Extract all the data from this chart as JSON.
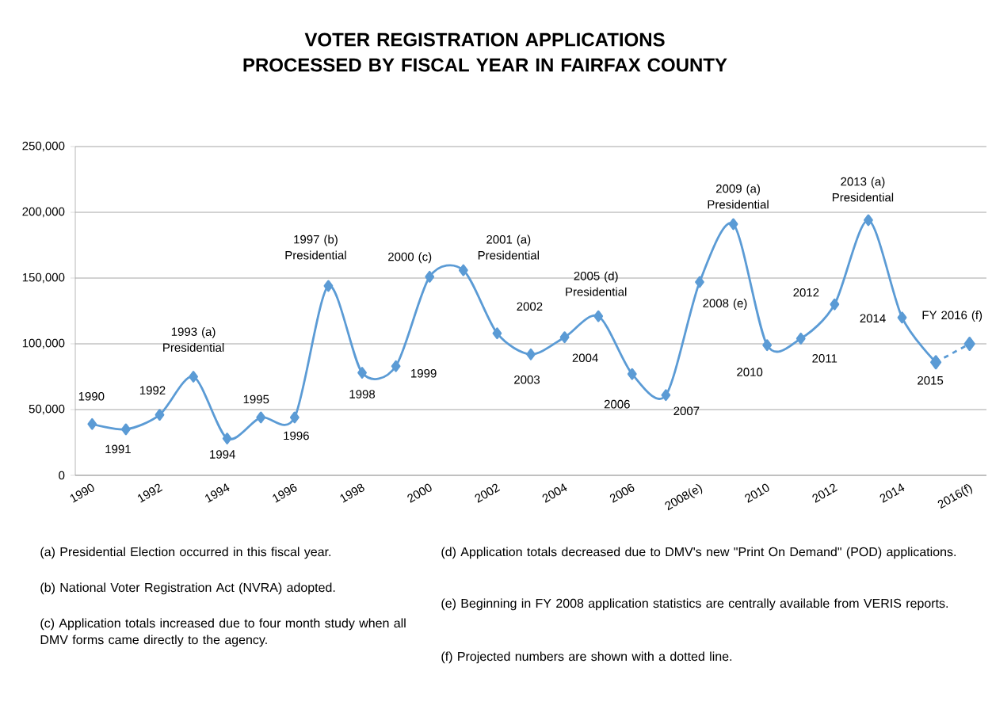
{
  "chart_data": {
    "type": "line",
    "title": "VOTER REGISTRATION APPLICATIONS PROCESSED BY FISCAL YEAR IN FAIRFAX COUNTY",
    "x": [
      1990,
      1991,
      1992,
      1993,
      1994,
      1995,
      1996,
      1997,
      1998,
      1999,
      2000,
      2001,
      2002,
      2003,
      2004,
      2005,
      2006,
      2007,
      2008,
      2009,
      2010,
      2011,
      2012,
      2013,
      2014,
      2015
    ],
    "series": [
      {
        "color": "#5b9bd5",
        "line_style": "solid",
        "values": [
          39000,
          35000,
          46000,
          75000,
          28000,
          44000,
          44000,
          144000,
          78000,
          83000,
          151000,
          156000,
          108000,
          92000,
          105000,
          121000,
          77000,
          61000,
          147000,
          191000,
          99000,
          104000,
          130000,
          194000,
          120000,
          86000
        ]
      },
      {
        "color": "#5b9bd5",
        "line_style": "dashed",
        "x": [
          2015,
          2016
        ],
        "values": [
          86000,
          100000
        ]
      }
    ],
    "xlim": [
      1989.5,
      2016.5
    ],
    "xticks": [
      1990,
      1992,
      1994,
      1996,
      1998,
      2000,
      2002,
      2004,
      2006,
      {
        "value": 2008,
        "label": "2008(e)"
      },
      2010,
      2012,
      2014,
      {
        "value": 2016,
        "label": "2016(f)"
      }
    ],
    "ylim": [
      0,
      250000
    ],
    "yticks": [
      0,
      {
        "value": 50000,
        "label": "50,000"
      },
      {
        "value": 100000,
        "label": "100,000"
      },
      {
        "value": 150000,
        "label": "150,000"
      },
      {
        "value": 200000,
        "label": "200,000"
      },
      {
        "value": 250000,
        "label": "250,000"
      }
    ],
    "grid": "y",
    "marker": "diamond",
    "annotations": [
      {
        "text": "1990",
        "x": 1990,
        "y": 39000
      },
      {
        "text": "1991",
        "x": 1991,
        "y": 35000
      },
      {
        "text": "1992",
        "x": 1992,
        "y": 46000
      },
      {
        "text": "1993 (a) Presidential",
        "x": 1993,
        "y": 75000
      },
      {
        "text": "1994",
        "x": 1994,
        "y": 28000
      },
      {
        "text": "1995",
        "x": 1995,
        "y": 44000
      },
      {
        "text": "1996",
        "x": 1996,
        "y": 44000
      },
      {
        "text": "1997 (b) Presidential",
        "x": 1997,
        "y": 144000
      },
      {
        "text": "1998",
        "x": 1998,
        "y": 78000
      },
      {
        "text": "1999",
        "x": 1999,
        "y": 83000
      },
      {
        "text": "2000 (c)",
        "x": 2000,
        "y": 151000
      },
      {
        "text": "2001 (a) Presidential",
        "x": 2001,
        "y": 156000
      },
      {
        "text": "2002",
        "x": 2002,
        "y": 108000
      },
      {
        "text": "2003",
        "x": 2003,
        "y": 92000
      },
      {
        "text": "2004",
        "x": 2004,
        "y": 105000
      },
      {
        "text": "2005 (d) Presidential",
        "x": 2005,
        "y": 121000
      },
      {
        "text": "2006",
        "x": 2006,
        "y": 77000
      },
      {
        "text": "2007",
        "x": 2007,
        "y": 61000
      },
      {
        "text": "2008 (e)",
        "x": 2008,
        "y": 147000
      },
      {
        "text": "2009 (a) Presidential",
        "x": 2009,
        "y": 191000
      },
      {
        "text": "2010",
        "x": 2010,
        "y": 99000
      },
      {
        "text": "2011",
        "x": 2011,
        "y": 104000
      },
      {
        "text": "2012",
        "x": 2012,
        "y": 130000
      },
      {
        "text": "2013 (a) Presidential",
        "x": 2013,
        "y": 194000
      },
      {
        "text": "2014",
        "x": 2014,
        "y": 120000
      },
      {
        "text": "2015",
        "x": 2015,
        "y": 86000
      },
      {
        "text": "FY 2016 (f)",
        "x": 2016,
        "y": 100000
      },
      "(a)  Presidential Election occurred in this fiscal year.",
      "(b)  National Voter Registration Act (NVRA) adopted.",
      "(c)  Application totals increased due to four month study when all DMV forms came directly to the agency.",
      "(d)  Application totals decreased due to DMV's new \"Print On Demand\" (POD) applications.",
      "(e)  Beginning in FY 2008 application statistics are centrally available from VERIS reports.",
      "(f)  Projected numbers are shown with a dotted line."
    ]
  }
}
